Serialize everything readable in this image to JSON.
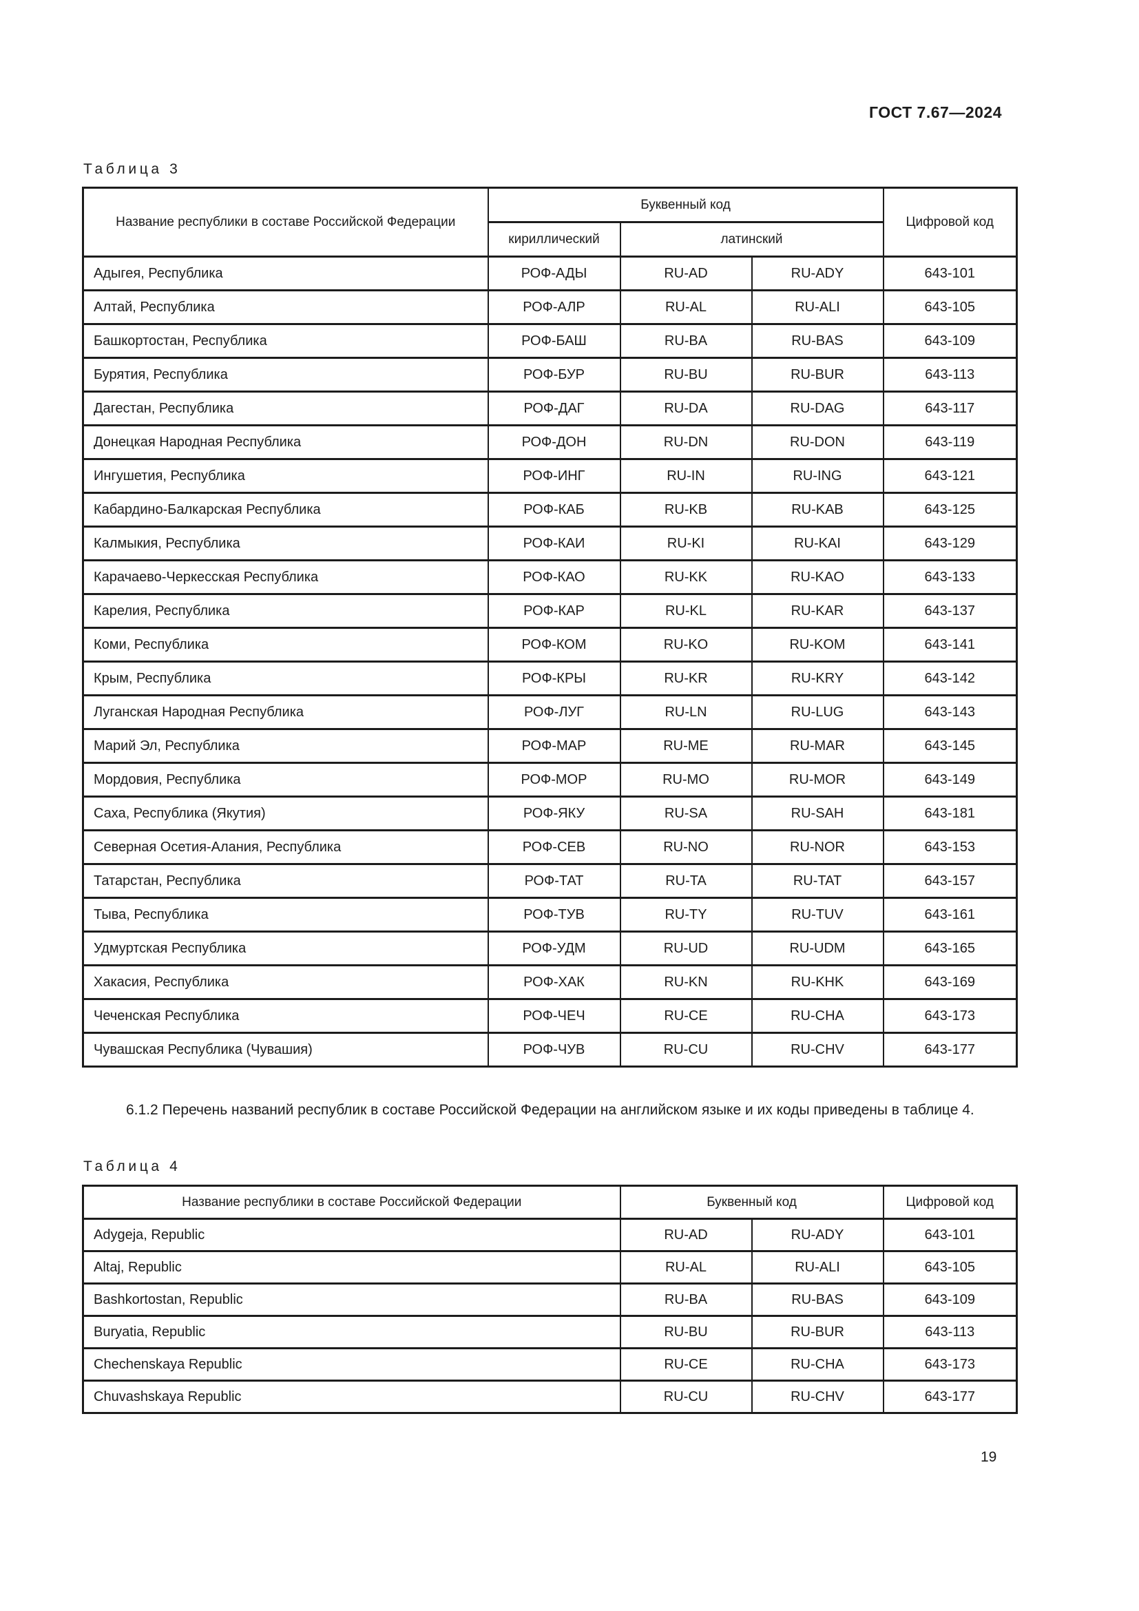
{
  "page": {
    "doc_number": "ГОСТ 7.67—2024",
    "page_number": "19"
  },
  "paragraph": {
    "text": "6.1.2 Перечень названий республик в составе Российской Федерации на английском языке и их коды приведены в таблице 4."
  },
  "table3": {
    "label": "Таблица 3",
    "headers": {
      "name": "Название республики в составе Российской Федерации",
      "letter_code": "Буквенный код",
      "cyrillic": "кириллический",
      "latin": "латинский",
      "numeric_code": "Цифровой код"
    },
    "rows": [
      {
        "name": "Адыгея, Республика",
        "cyr": "РОФ-АДЫ",
        "lat1": "RU-AD",
        "lat2": "RU-ADY",
        "num": "643-101"
      },
      {
        "name": "Алтай, Республика",
        "cyr": "РОФ-АЛР",
        "lat1": "RU-AL",
        "lat2": "RU-ALI",
        "num": "643-105"
      },
      {
        "name": "Башкортостан, Республика",
        "cyr": "РОФ-БАШ",
        "lat1": "RU-BA",
        "lat2": "RU-BAS",
        "num": "643-109"
      },
      {
        "name": "Бурятия, Республика",
        "cyr": "РОФ-БУР",
        "lat1": "RU-BU",
        "lat2": "RU-BUR",
        "num": "643-113"
      },
      {
        "name": "Дагестан, Республика",
        "cyr": "РОФ-ДАГ",
        "lat1": "RU-DA",
        "lat2": "RU-DAG",
        "num": "643-117"
      },
      {
        "name": "Донецкая Народная Республика",
        "cyr": "РОФ-ДОН",
        "lat1": "RU-DN",
        "lat2": "RU-DON",
        "num": "643-119"
      },
      {
        "name": "Ингушетия, Республика",
        "cyr": "РОФ-ИНГ",
        "lat1": "RU-IN",
        "lat2": "RU-ING",
        "num": "643-121"
      },
      {
        "name": "Кабардино-Балкарская Республика",
        "cyr": "РОФ-КАБ",
        "lat1": "RU-KB",
        "lat2": "RU-KAB",
        "num": "643-125"
      },
      {
        "name": "Калмыкия, Республика",
        "cyr": "РОФ-КАИ",
        "lat1": "RU-KI",
        "lat2": "RU-KAI",
        "num": "643-129"
      },
      {
        "name": "Карачаево-Черкесская Республика",
        "cyr": "РОФ-КАО",
        "lat1": "RU-KK",
        "lat2": "RU-KAO",
        "num": "643-133"
      },
      {
        "name": "Карелия, Республика",
        "cyr": "РОФ-КАР",
        "lat1": "RU-KL",
        "lat2": "RU-KAR",
        "num": "643-137"
      },
      {
        "name": "Коми, Республика",
        "cyr": "РОФ-КОМ",
        "lat1": "RU-KO",
        "lat2": "RU-KOM",
        "num": "643-141"
      },
      {
        "name": "Крым, Республика",
        "cyr": "РОФ-КРЫ",
        "lat1": "RU-KR",
        "lat2": "RU-KRY",
        "num": "643-142"
      },
      {
        "name": "Луганская Народная Республика",
        "cyr": "РОФ-ЛУГ",
        "lat1": "RU-LN",
        "lat2": "RU-LUG",
        "num": "643-143"
      },
      {
        "name": "Марий Эл, Республика",
        "cyr": "РОФ-МАР",
        "lat1": "RU-ME",
        "lat2": "RU-MAR",
        "num": "643-145"
      },
      {
        "name": "Мордовия, Республика",
        "cyr": "РОФ-МОР",
        "lat1": "RU-MO",
        "lat2": "RU-MOR",
        "num": "643-149"
      },
      {
        "name": "Саха, Республика (Якутия)",
        "cyr": "РОФ-ЯКУ",
        "lat1": "RU-SA",
        "lat2": "RU-SAH",
        "num": "643-181"
      },
      {
        "name": "Северная Осетия-Алания, Республика",
        "cyr": "РОФ-СЕВ",
        "lat1": "RU-NO",
        "lat2": "RU-NOR",
        "num": "643-153"
      },
      {
        "name": "Татарстан, Республика",
        "cyr": "РОФ-ТАТ",
        "lat1": "RU-TA",
        "lat2": "RU-TAT",
        "num": "643-157"
      },
      {
        "name": "Тыва, Республика",
        "cyr": "РОФ-ТУВ",
        "lat1": "RU-TY",
        "lat2": "RU-TUV",
        "num": "643-161"
      },
      {
        "name": "Удмуртская Республика",
        "cyr": "РОФ-УДМ",
        "lat1": "RU-UD",
        "lat2": "RU-UDM",
        "num": "643-165"
      },
      {
        "name": "Хакасия, Республика",
        "cyr": "РОФ-ХАК",
        "lat1": "RU-KN",
        "lat2": "RU-KHK",
        "num": "643-169"
      },
      {
        "name": "Чеченская Республика",
        "cyr": "РОФ-ЧЕЧ",
        "lat1": "RU-CE",
        "lat2": "RU-CHA",
        "num": "643-173"
      },
      {
        "name": "Чувашская Республика (Чувашия)",
        "cyr": "РОФ-ЧУВ",
        "lat1": "RU-CU",
        "lat2": "RU-CHV",
        "num": "643-177"
      }
    ]
  },
  "table4": {
    "label": "Таблица 4",
    "headers": {
      "name": "Название республики в составе Российской Федерации",
      "letter_code": "Буквенный код",
      "numeric_code": "Цифровой код"
    },
    "rows": [
      {
        "name": "Adygeja, Republic",
        "lat1": "RU-AD",
        "lat2": "RU-ADY",
        "num": "643-101"
      },
      {
        "name": "Altaj, Republic",
        "lat1": "RU-AL",
        "lat2": "RU-ALI",
        "num": "643-105"
      },
      {
        "name": "Bashkortostan, Republic",
        "lat1": "RU-BA",
        "lat2": "RU-BAS",
        "num": "643-109"
      },
      {
        "name": "Buryatia, Republic",
        "lat1": "RU-BU",
        "lat2": "RU-BUR",
        "num": "643-113"
      },
      {
        "name": "Chechenskaya Republic",
        "lat1": "RU-CE",
        "lat2": "RU-CHA",
        "num": "643-173"
      },
      {
        "name": "Chuvashskaya Republic",
        "lat1": "RU-CU",
        "lat2": "RU-CHV",
        "num": "643-177"
      }
    ]
  }
}
